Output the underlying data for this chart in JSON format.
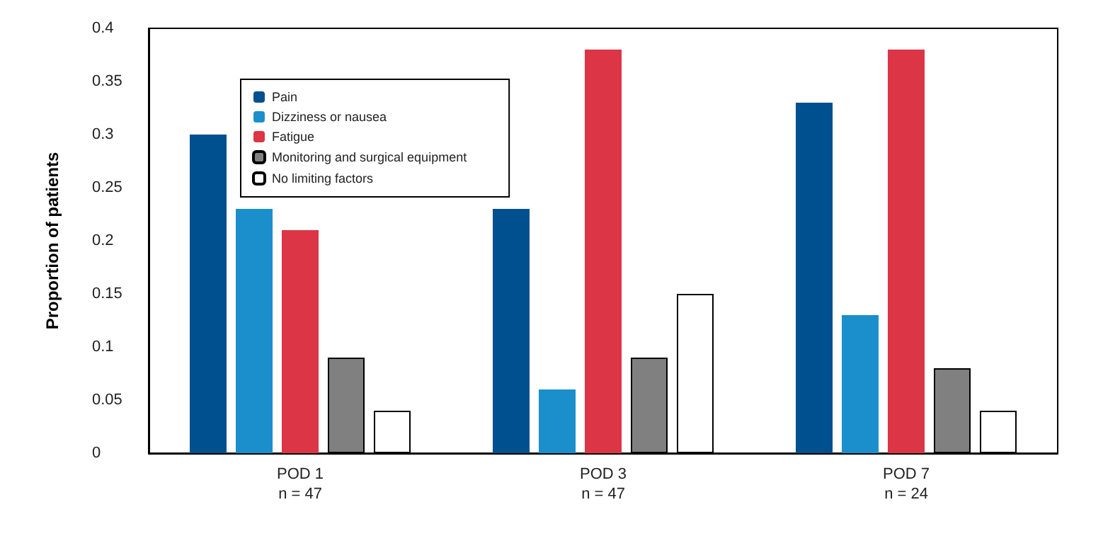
{
  "chart_data": {
    "type": "bar",
    "ylabel": "Proportion of patients",
    "categories": [
      "POD 1\nn = 47",
      "POD 3\nn = 47",
      "POD 7\nn = 24"
    ],
    "series": [
      {
        "name": "Pain",
        "color": "#00508f",
        "values": [
          0.3,
          0.23,
          0.33
        ]
      },
      {
        "name": "Dizziness or nausea",
        "color": "#1a8fcc",
        "values": [
          0.23,
          0.06,
          0.13
        ]
      },
      {
        "name": "Fatigue",
        "color": "#dc3545",
        "values": [
          0.21,
          0.38,
          0.38
        ]
      },
      {
        "name": "Monitoring and surgical equipment",
        "color": "#808080",
        "values": [
          0.09,
          0.09,
          0.08
        ]
      },
      {
        "name": "No limiting factors",
        "color": "#ffffff",
        "values": [
          0.04,
          0.15,
          0.04
        ]
      }
    ],
    "ylim": [
      0,
      0.4
    ],
    "yticks": [
      0,
      0.05,
      0.1,
      0.15,
      0.2,
      0.25,
      0.3,
      0.35,
      0.4
    ],
    "grid": false,
    "legend": "top left"
  }
}
